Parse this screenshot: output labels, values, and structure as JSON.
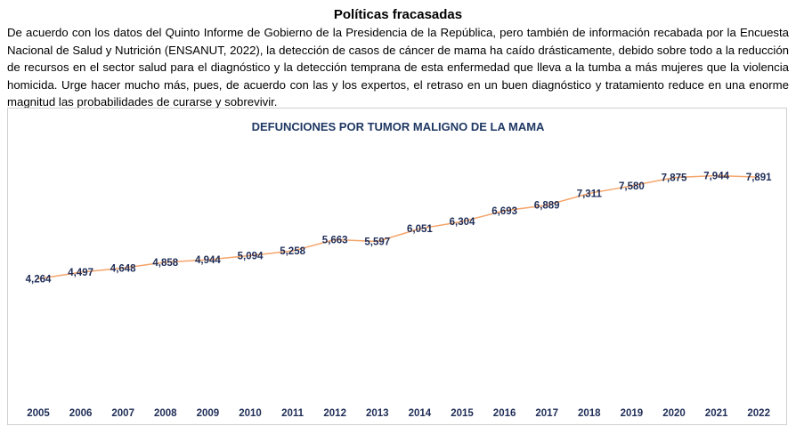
{
  "document": {
    "title": "Políticas fracasadas",
    "paragraph": "De acuerdo con los datos del Quinto Informe de Gobierno de la Presidencia de la República, pero también de información recabada por la Encuesta Nacional de Salud y Nutrición (ENSANUT, 2022), la detección de casos de cáncer de mama ha caído drásticamente, debido sobre todo a la reducción de recursos en el sector salud para el diagnóstico y la detección temprana de esta enfermedad que lleva a la tumba a más mujeres que la violencia homicida. Urge hacer mucho más, pues, de acuerdo con las y los expertos, el retraso en un buen diagnóstico y tratamiento reduce en una enorme magnitud las probabilidades de curarse y sobrevivir."
  },
  "chart_data": {
    "type": "line",
    "title": "DEFUNCIONES POR TUMOR MALIGNO DE LA MAMA",
    "categories": [
      "2005",
      "2006",
      "2007",
      "2008",
      "2009",
      "2010",
      "2011",
      "2012",
      "2013",
      "2014",
      "2015",
      "2016",
      "2017",
      "2018",
      "2019",
      "2020",
      "2021",
      "2022"
    ],
    "values": [
      4264,
      4497,
      4648,
      4858,
      4944,
      5094,
      5258,
      5663,
      5597,
      6051,
      6304,
      6693,
      6889,
      7311,
      7580,
      7875,
      7944,
      7891
    ],
    "data_labels": [
      "4,264",
      "4,497",
      "4,648",
      "4,858",
      "4,944",
      "5,094",
      "5,258",
      "5,663",
      "5,597",
      "6,051",
      "6,304",
      "6,693",
      "6,889",
      "7,311",
      "7,580",
      "7,875",
      "7,944",
      "7,891"
    ],
    "xlabel": "",
    "ylabel": "",
    "ylim": [
      0,
      9100
    ],
    "grid": false,
    "legend": "none",
    "line_color": "#f4a46a",
    "label_color": "#1f2d57"
  }
}
